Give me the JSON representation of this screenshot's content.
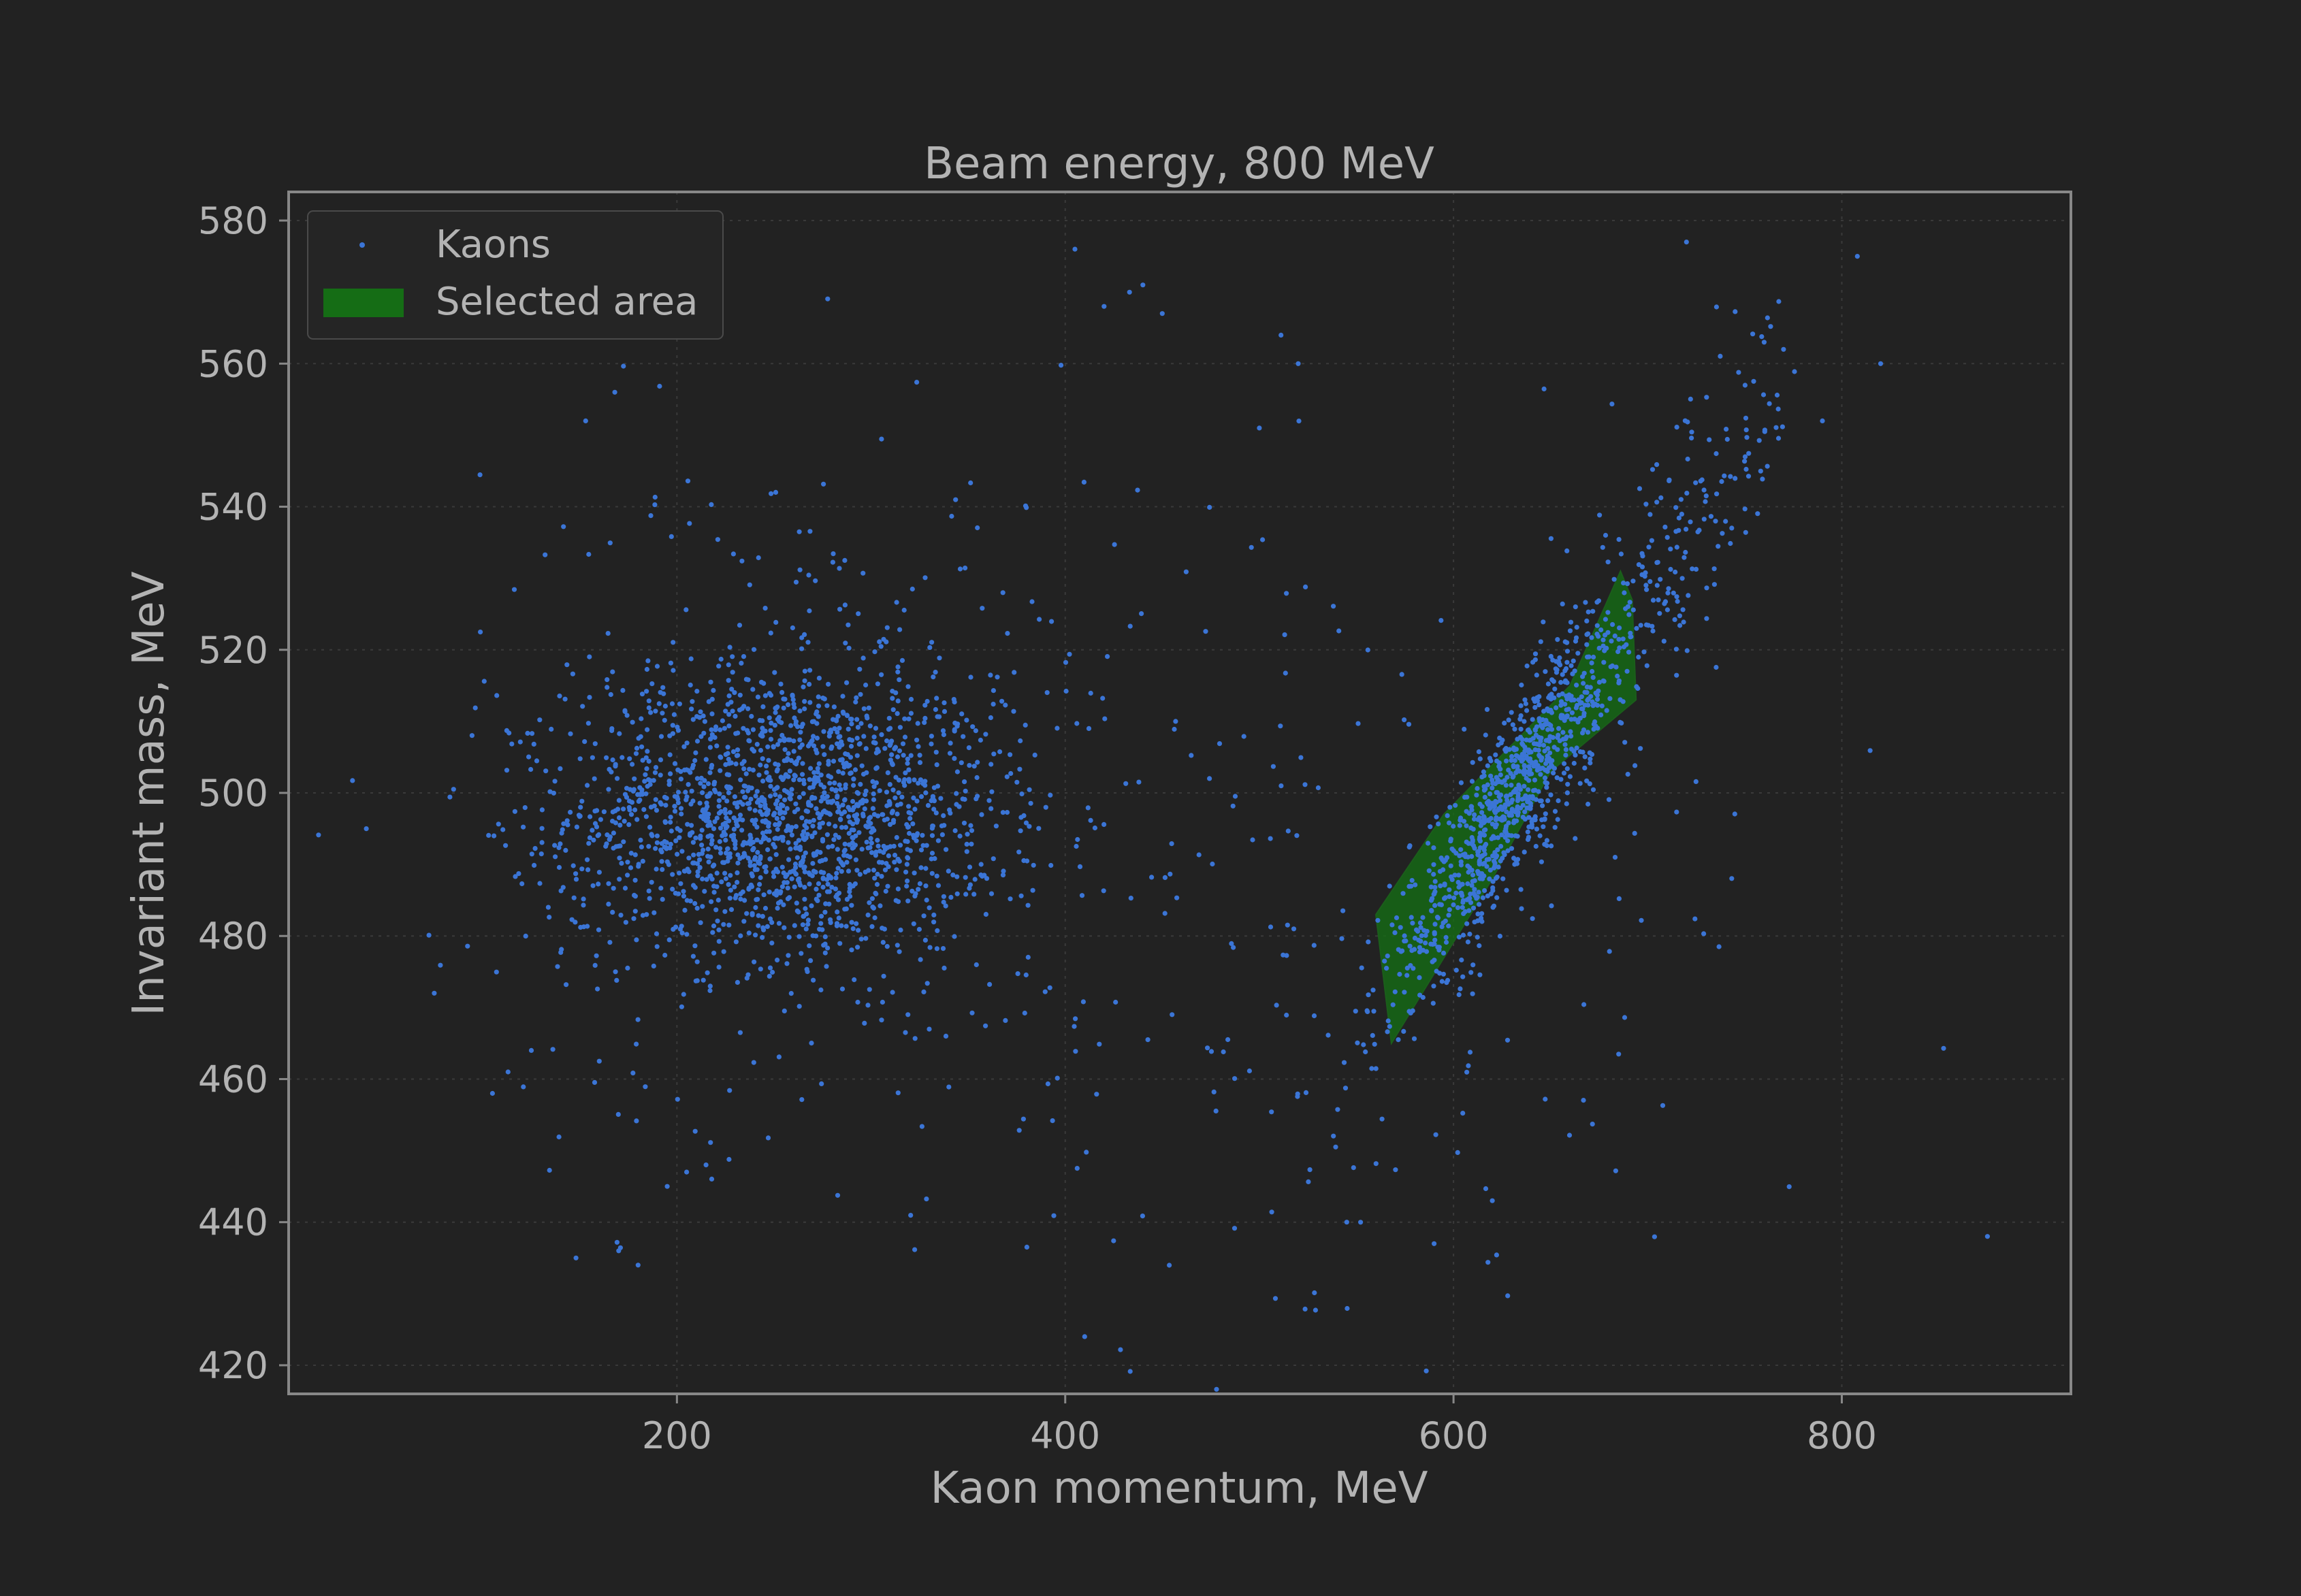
{
  "colors": {
    "background": "#222222",
    "frame": "#888888",
    "grid": "#3a3a3a",
    "text": "#b3b3b3",
    "points": "#3b75d6",
    "selection_fill": "#156d15",
    "selection_edge": "#1b5e1b",
    "legend_bg": "#252525",
    "legend_edge": "#4a4a4a"
  },
  "chart_data": {
    "type": "scatter",
    "title": "Beam energy, 800 MeV",
    "xlabel": "Kaon momentum, MeV",
    "ylabel": "Invariant mass, MeV",
    "xlim": [
      0,
      918
    ],
    "ylim": [
      416,
      584
    ],
    "x_ticks": [
      200,
      400,
      600,
      800
    ],
    "y_ticks": [
      420,
      440,
      460,
      480,
      500,
      520,
      540,
      560,
      580
    ],
    "grid": true,
    "legend_position": "top-left",
    "legend": [
      {
        "label": "Kaons",
        "kind": "marker"
      },
      {
        "label": "Selected area",
        "kind": "patch"
      }
    ],
    "series": [
      {
        "name": "Kaons",
        "kind": "scatter",
        "clusters": [
          {
            "n": 1550,
            "cx": 255,
            "cy": 497,
            "sx": 55,
            "sy": 10
          },
          {
            "n": 420,
            "cx": 270,
            "cy": 500,
            "sx": 85,
            "sy": 24
          },
          {
            "n": 950,
            "cx": 632,
            "cy": 500,
            "slope": 0.4,
            "sx_along": 35,
            "sy_perp": 6
          },
          {
            "n": 130,
            "cx": 725,
            "cy": 537,
            "slope": 0.4,
            "sx_along": 28,
            "sy_perp": 9
          },
          {
            "n": 200,
            "cx": 540,
            "cy": 480,
            "sx": 120,
            "sy": 30
          }
        ],
        "points": [
          [
            40,
            495
          ],
          [
            75,
            472
          ],
          [
            105,
            458
          ],
          [
            113,
            461
          ],
          [
            125,
            464
          ],
          [
            148,
            435
          ],
          [
            170,
            436
          ],
          [
            180,
            434
          ],
          [
            168,
            556
          ],
          [
            153,
            552
          ],
          [
            195,
            445
          ],
          [
            205,
            447
          ],
          [
            215,
            448
          ],
          [
            410,
            424
          ],
          [
            405,
            576
          ],
          [
            440,
            571
          ],
          [
            420,
            568
          ],
          [
            450,
            567
          ],
          [
            500,
            551
          ],
          [
            520,
            560
          ],
          [
            875,
            438
          ],
          [
            808,
            575
          ],
          [
            820,
            560
          ],
          [
            720,
            577
          ],
          [
            790,
            552
          ],
          [
            770,
            562
          ],
          [
            760,
            563
          ],
          [
            545,
            440
          ],
          [
            590,
            437
          ],
          [
            620,
            443
          ]
        ]
      },
      {
        "name": "Selected area",
        "kind": "polygon",
        "vertices": [
          [
            560,
            483
          ],
          [
            568,
            465
          ],
          [
            620,
            488
          ],
          [
            650,
            503
          ],
          [
            694,
            513
          ],
          [
            692,
            527
          ],
          [
            686,
            531
          ],
          [
            660,
            515
          ],
          [
            595,
            497
          ]
        ]
      }
    ]
  }
}
